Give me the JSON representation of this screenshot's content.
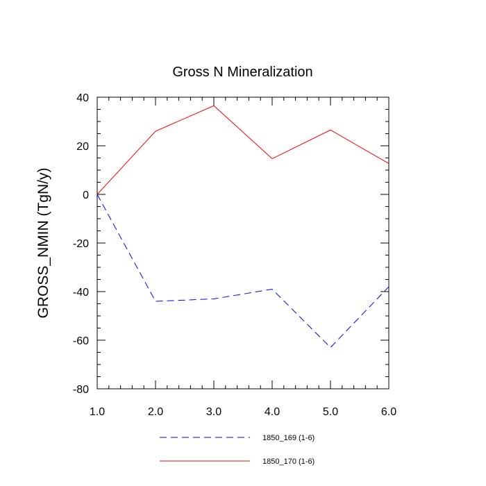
{
  "chart_data": {
    "type": "line",
    "title": "Gross N Mineralization",
    "xlabel": "",
    "ylabel": "GROSS_NMIN  (TgN/y)",
    "xlim": [
      1.0,
      6.0
    ],
    "ylim": [
      -80,
      40
    ],
    "x": [
      1.0,
      2.0,
      3.0,
      4.0,
      5.0,
      6.0
    ],
    "xticks": [
      "1.0",
      "2.0",
      "3.0",
      "4.0",
      "5.0",
      "6.0"
    ],
    "yticks": [
      "40",
      "20",
      "0",
      "-20",
      "-40",
      "-60",
      "-80"
    ],
    "legend_position": "bottom",
    "series": [
      {
        "name": "1850_169 (1-6)",
        "values": [
          0,
          -44,
          -43,
          -39,
          -63,
          -38
        ],
        "color": "#0000ff",
        "style": "dashed"
      },
      {
        "name": "1850_170 (1-6)",
        "values": [
          0,
          26,
          36.5,
          14.7,
          26.5,
          12.7
        ],
        "color": "#ff0000",
        "style": "solid"
      }
    ]
  }
}
